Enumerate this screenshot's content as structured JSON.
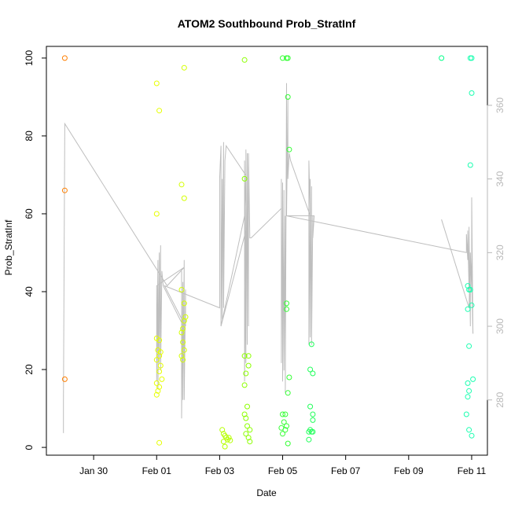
{
  "chart_data": {
    "type": "scatter",
    "title": "ATOM2 Southbound Prob_StratInf",
    "xlabel": "Date",
    "ylabel": "Prob_StratInf",
    "xlim": [
      "2017-01-28T12:00",
      "2017-02-11T12:00"
    ],
    "ylim": [
      -2,
      103
    ],
    "y_ticks": [
      0,
      20,
      40,
      60,
      80,
      100
    ],
    "x_ticks": [
      {
        "value": "2017-01-30",
        "label": "Jan 30"
      },
      {
        "value": "2017-02-01",
        "label": "Feb 01"
      },
      {
        "value": "2017-02-03",
        "label": "Feb 03"
      },
      {
        "value": "2017-02-05",
        "label": "Feb 05"
      },
      {
        "value": "2017-02-07",
        "label": "Feb 07"
      },
      {
        "value": "2017-02-09",
        "label": "Feb 09"
      },
      {
        "value": "2017-02-11",
        "label": "Feb 11"
      }
    ],
    "y2lim": [
      265,
      376
    ],
    "y2_ticks": [
      280,
      300,
      320,
      340,
      360
    ],
    "grid": false,
    "legend": "none",
    "colors": {
      "line": "#bebebe",
      "right_axis": "#b8b8b8"
    },
    "points": [
      {
        "x": "2017-01-29T02:00",
        "y": 100,
        "color": "#ff7f00"
      },
      {
        "x": "2017-01-29T02:00",
        "y": 66,
        "color": "#ff7f00"
      },
      {
        "x": "2017-01-29T02:00",
        "y": 17.5,
        "color": "#ff7f00"
      },
      {
        "x": "2017-02-01T00:00",
        "y": 93.5,
        "color": "#e6ff00"
      },
      {
        "x": "2017-02-01T02:00",
        "y": 86.5,
        "color": "#e6ff00"
      },
      {
        "x": "2017-02-01T00:00",
        "y": 60,
        "color": "#e6ff00"
      },
      {
        "x": "2017-02-01T00:00",
        "y": 28,
        "color": "#e6ff00"
      },
      {
        "x": "2017-02-01T02:00",
        "y": 27.5,
        "color": "#e6ff00"
      },
      {
        "x": "2017-02-01T01:00",
        "y": 25,
        "color": "#e6ff00"
      },
      {
        "x": "2017-02-01T03:00",
        "y": 24.5,
        "color": "#e6ff00"
      },
      {
        "x": "2017-02-01T02:00",
        "y": 23.5,
        "color": "#e6ff00"
      },
      {
        "x": "2017-02-01T00:00",
        "y": 22.5,
        "color": "#e6ff00"
      },
      {
        "x": "2017-02-01T03:00",
        "y": 21,
        "color": "#e6ff00"
      },
      {
        "x": "2017-02-01T02:00",
        "y": 19.5,
        "color": "#e6ff00"
      },
      {
        "x": "2017-02-01T04:00",
        "y": 17.5,
        "color": "#e6ff00"
      },
      {
        "x": "2017-02-01T00:00",
        "y": 16.5,
        "color": "#e6ff00"
      },
      {
        "x": "2017-02-01T02:00",
        "y": 15.5,
        "color": "#e6ff00"
      },
      {
        "x": "2017-02-01T01:00",
        "y": 14.5,
        "color": "#e6ff00"
      },
      {
        "x": "2017-02-01T00:00",
        "y": 13.5,
        "color": "#e6ff00"
      },
      {
        "x": "2017-02-01T02:00",
        "y": 1.2,
        "color": "#e6ff00"
      },
      {
        "x": "2017-02-01T21:00",
        "y": 97.5,
        "color": "#d4ff00"
      },
      {
        "x": "2017-02-01T19:00",
        "y": 67.5,
        "color": "#d4ff00"
      },
      {
        "x": "2017-02-01T21:00",
        "y": 64,
        "color": "#d4ff00"
      },
      {
        "x": "2017-02-01T19:00",
        "y": 40.5,
        "color": "#d4ff00"
      },
      {
        "x": "2017-02-01T21:00",
        "y": 37,
        "color": "#d4ff00"
      },
      {
        "x": "2017-02-01T22:00",
        "y": 33.5,
        "color": "#d4ff00"
      },
      {
        "x": "2017-02-01T21:00",
        "y": 32.5,
        "color": "#d4ff00"
      },
      {
        "x": "2017-02-01T20:00",
        "y": 30.5,
        "color": "#d4ff00"
      },
      {
        "x": "2017-02-01T19:00",
        "y": 29.5,
        "color": "#d4ff00"
      },
      {
        "x": "2017-02-01T20:00",
        "y": 27,
        "color": "#d4ff00"
      },
      {
        "x": "2017-02-01T21:00",
        "y": 25,
        "color": "#d4ff00"
      },
      {
        "x": "2017-02-01T19:00",
        "y": 23.5,
        "color": "#d4ff00"
      },
      {
        "x": "2017-02-01T20:00",
        "y": 22.5,
        "color": "#d4ff00"
      },
      {
        "x": "2017-02-03T02:00",
        "y": 4.5,
        "color": "#b5ff00"
      },
      {
        "x": "2017-02-03T03:00",
        "y": 3.5,
        "color": "#b5ff00"
      },
      {
        "x": "2017-02-03T04:00",
        "y": 3,
        "color": "#b5ff00"
      },
      {
        "x": "2017-02-03T05:00",
        "y": 2.5,
        "color": "#b5ff00"
      },
      {
        "x": "2017-02-03T06:00",
        "y": 2,
        "color": "#b5ff00"
      },
      {
        "x": "2017-02-03T03:00",
        "y": 1.5,
        "color": "#b5ff00"
      },
      {
        "x": "2017-02-03T07:00",
        "y": 2.5,
        "color": "#b5ff00"
      },
      {
        "x": "2017-02-03T08:00",
        "y": 1.8,
        "color": "#b5ff00"
      },
      {
        "x": "2017-02-03T04:00",
        "y": 0.2,
        "color": "#b5ff00"
      },
      {
        "x": "2017-02-03T19:00",
        "y": 99.5,
        "color": "#8cff00"
      },
      {
        "x": "2017-02-03T19:00",
        "y": 69,
        "color": "#8cff00"
      },
      {
        "x": "2017-02-03T19:00",
        "y": 23.5,
        "color": "#8cff00"
      },
      {
        "x": "2017-02-03T22:00",
        "y": 23.5,
        "color": "#8cff00"
      },
      {
        "x": "2017-02-03T22:00",
        "y": 21,
        "color": "#8cff00"
      },
      {
        "x": "2017-02-03T20:00",
        "y": 19,
        "color": "#8cff00"
      },
      {
        "x": "2017-02-03T19:00",
        "y": 16,
        "color": "#8cff00"
      },
      {
        "x": "2017-02-03T21:00",
        "y": 10.5,
        "color": "#8cff00"
      },
      {
        "x": "2017-02-03T19:00",
        "y": 8.5,
        "color": "#8cff00"
      },
      {
        "x": "2017-02-03T20:00",
        "y": 7.5,
        "color": "#8cff00"
      },
      {
        "x": "2017-02-03T21:00",
        "y": 5.5,
        "color": "#8cff00"
      },
      {
        "x": "2017-02-03T23:00",
        "y": 4.5,
        "color": "#8cff00"
      },
      {
        "x": "2017-02-03T20:00",
        "y": 3.5,
        "color": "#8cff00"
      },
      {
        "x": "2017-02-03T22:00",
        "y": 2.5,
        "color": "#8cff00"
      },
      {
        "x": "2017-02-03T23:00",
        "y": 1.5,
        "color": "#8cff00"
      },
      {
        "x": "2017-02-05T00:00",
        "y": 100,
        "color": "#33ff33"
      },
      {
        "x": "2017-02-05T03:00",
        "y": 100,
        "color": "#33ff33"
      },
      {
        "x": "2017-02-05T04:00",
        "y": 100,
        "color": "#33ff33"
      },
      {
        "x": "2017-02-05T04:00",
        "y": 90,
        "color": "#33ff33"
      },
      {
        "x": "2017-02-05T05:00",
        "y": 76.5,
        "color": "#33ff33"
      },
      {
        "x": "2017-02-05T03:00",
        "y": 37,
        "color": "#33ff33"
      },
      {
        "x": "2017-02-05T03:00",
        "y": 35.5,
        "color": "#33ff33"
      },
      {
        "x": "2017-02-05T05:00",
        "y": 18,
        "color": "#33ff33"
      },
      {
        "x": "2017-02-05T04:00",
        "y": 14,
        "color": "#33ff33"
      },
      {
        "x": "2017-02-05T00:00",
        "y": 8.5,
        "color": "#33ff33"
      },
      {
        "x": "2017-02-05T02:00",
        "y": 8.5,
        "color": "#33ff33"
      },
      {
        "x": "2017-02-05T01:00",
        "y": 6.5,
        "color": "#33ff33"
      },
      {
        "x": "2017-02-05T03:00",
        "y": 5.5,
        "color": "#33ff33"
      },
      {
        "x": "2017-02-04T23:00",
        "y": 5,
        "color": "#33ff33"
      },
      {
        "x": "2017-02-05T02:00",
        "y": 4.5,
        "color": "#33ff33"
      },
      {
        "x": "2017-02-05T00:00",
        "y": 3.5,
        "color": "#33ff33"
      },
      {
        "x": "2017-02-05T04:00",
        "y": 1,
        "color": "#33ff33"
      },
      {
        "x": "2017-02-05T22:00",
        "y": 26.5,
        "color": "#20ff5a"
      },
      {
        "x": "2017-02-05T21:00",
        "y": 20,
        "color": "#20ff5a"
      },
      {
        "x": "2017-02-05T23:00",
        "y": 19,
        "color": "#20ff5a"
      },
      {
        "x": "2017-02-05T21:00",
        "y": 10.5,
        "color": "#20ff5a"
      },
      {
        "x": "2017-02-05T23:00",
        "y": 8.5,
        "color": "#20ff5a"
      },
      {
        "x": "2017-02-05T23:00",
        "y": 7,
        "color": "#20ff5a"
      },
      {
        "x": "2017-02-05T21:00",
        "y": 4.5,
        "color": "#20ff5a"
      },
      {
        "x": "2017-02-05T20:00",
        "y": 4,
        "color": "#20ff5a"
      },
      {
        "x": "2017-02-05T22:00",
        "y": 4,
        "color": "#20ff5a"
      },
      {
        "x": "2017-02-05T23:00",
        "y": 4,
        "color": "#20ff5a"
      },
      {
        "x": "2017-02-05T20:00",
        "y": 2,
        "color": "#20ff5a"
      },
      {
        "x": "2017-02-10T01:00",
        "y": 100,
        "color": "#00ff88"
      },
      {
        "x": "2017-02-10T23:00",
        "y": 100,
        "color": "#1affb0"
      },
      {
        "x": "2017-02-11T00:00",
        "y": 100,
        "color": "#1affb0"
      },
      {
        "x": "2017-02-11T00:00",
        "y": 91,
        "color": "#1affb0"
      },
      {
        "x": "2017-02-10T23:00",
        "y": 72.5,
        "color": "#1affb0"
      },
      {
        "x": "2017-02-10T21:00",
        "y": 41.5,
        "color": "#1affb0"
      },
      {
        "x": "2017-02-10T22:00",
        "y": 40.5,
        "color": "#1affb0"
      },
      {
        "x": "2017-02-10T23:00",
        "y": 40.5,
        "color": "#1affb0"
      },
      {
        "x": "2017-02-11T00:00",
        "y": 36.5,
        "color": "#1affb0"
      },
      {
        "x": "2017-02-10T21:00",
        "y": 35.5,
        "color": "#1affb0"
      },
      {
        "x": "2017-02-10T22:00",
        "y": 26,
        "color": "#1affb0"
      },
      {
        "x": "2017-02-11T01:00",
        "y": 17.5,
        "color": "#1affb0"
      },
      {
        "x": "2017-02-10T21:00",
        "y": 16.5,
        "color": "#1affb0"
      },
      {
        "x": "2017-02-10T22:00",
        "y": 14.5,
        "color": "#1affb0"
      },
      {
        "x": "2017-02-10T21:00",
        "y": 13,
        "color": "#1affb0"
      },
      {
        "x": "2017-02-10T20:00",
        "y": 8.5,
        "color": "#1affb0"
      },
      {
        "x": "2017-02-10T22:00",
        "y": 4.5,
        "color": "#1affb0"
      },
      {
        "x": "2017-02-11T00:00",
        "y": 3,
        "color": "#1affb0"
      }
    ],
    "altitude_line": [
      [
        "2017-01-29T01:00",
        271
      ],
      [
        "2017-01-29T01:00",
        280
      ],
      [
        "2017-01-29T02:00",
        355
      ],
      [
        "2017-02-01T08:00",
        311
      ],
      [
        "2017-02-01T21:00",
        316
      ],
      [
        "2017-02-01T00:00",
        311
      ],
      [
        "2017-02-01T00:00",
        285
      ],
      [
        "2017-02-01T01:00",
        318
      ],
      [
        "2017-02-01T01:00",
        283
      ],
      [
        "2017-02-01T02:00",
        320
      ],
      [
        "2017-02-01T02:00",
        290
      ],
      [
        "2017-02-01T03:00",
        322
      ],
      [
        "2017-02-01T03:00",
        288
      ],
      [
        "2017-02-01T04:00",
        315
      ],
      [
        "2017-02-01T05:00",
        311
      ],
      [
        "2017-02-01T19:00",
        301
      ],
      [
        "2017-02-01T19:00",
        315
      ],
      [
        "2017-02-01T19:00",
        275
      ],
      [
        "2017-02-01T20:00",
        312
      ],
      [
        "2017-02-01T20:00",
        280
      ],
      [
        "2017-02-01T21:00",
        318
      ],
      [
        "2017-02-01T21:00",
        280
      ],
      [
        "2017-02-01T22:00",
        310
      ],
      [
        "2017-02-01T22:00",
        300
      ],
      [
        "2017-02-01T06:00",
        311
      ],
      [
        "2017-02-03T00:00",
        305
      ],
      [
        "2017-02-03T00:00",
        340
      ],
      [
        "2017-02-03T01:00",
        349
      ],
      [
        "2017-02-03T01:00",
        300
      ],
      [
        "2017-02-03T02:00",
        340
      ],
      [
        "2017-02-03T02:00",
        302
      ],
      [
        "2017-02-03T03:00",
        350
      ],
      [
        "2017-02-03T03:00",
        305
      ],
      [
        "2017-02-03T04:00",
        345
      ],
      [
        "2017-02-03T05:00",
        349
      ],
      [
        "2017-02-03T20:00",
        341
      ],
      [
        "2017-02-03T19:00",
        330
      ],
      [
        "2017-02-03T01:00",
        300
      ],
      [
        "2017-02-03T20:00",
        326
      ],
      [
        "2017-02-03T19:00",
        285
      ],
      [
        "2017-02-03T19:00",
        345
      ],
      [
        "2017-02-03T20:00",
        290
      ],
      [
        "2017-02-03T20:00",
        348
      ],
      [
        "2017-02-03T21:00",
        295
      ],
      [
        "2017-02-03T21:00",
        347
      ],
      [
        "2017-02-03T22:00",
        300
      ],
      [
        "2017-02-03T22:00",
        347
      ],
      [
        "2017-02-03T23:00",
        324
      ],
      [
        "2017-02-04T00:00",
        324
      ],
      [
        "2017-02-04T23:00",
        332
      ],
      [
        "2017-02-04T23:00",
        340
      ],
      [
        "2017-02-04T23:00",
        290
      ],
      [
        "2017-02-05T00:00",
        339
      ],
      [
        "2017-02-05T00:00",
        285
      ],
      [
        "2017-02-05T01:00",
        337
      ],
      [
        "2017-02-05T01:00",
        288
      ],
      [
        "2017-02-05T02:00",
        330
      ],
      [
        "2017-02-05T02:00",
        282
      ],
      [
        "2017-02-05T03:00",
        366
      ],
      [
        "2017-02-05T03:00",
        330
      ],
      [
        "2017-02-05T04:00",
        362
      ],
      [
        "2017-02-05T04:00",
        340
      ],
      [
        "2017-02-05T05:00",
        347
      ],
      [
        "2017-02-05T06:00",
        345
      ],
      [
        "2017-02-05T21:00",
        330
      ],
      [
        "2017-02-05T20:00",
        345
      ],
      [
        "2017-02-05T20:00",
        295
      ],
      [
        "2017-02-05T21:00",
        340
      ],
      [
        "2017-02-05T21:00",
        297
      ],
      [
        "2017-02-05T22:00",
        338
      ],
      [
        "2017-02-05T22:00",
        295
      ],
      [
        "2017-02-05T23:00",
        330
      ],
      [
        "2017-02-05T23:00",
        324
      ],
      [
        "2017-02-06T00:00",
        330
      ],
      [
        "2017-02-05T03:00",
        330
      ],
      [
        "2017-02-10T20:00",
        320
      ],
      [
        "2017-02-10T20:00",
        325
      ],
      [
        "2017-02-10T21:00",
        318
      ],
      [
        "2017-02-10T21:00",
        326
      ],
      [
        "2017-02-10T22:00",
        310
      ],
      [
        "2017-02-10T22:00",
        327
      ],
      [
        "2017-02-10T23:00",
        300
      ],
      [
        "2017-02-10T23:00",
        320
      ],
      [
        "2017-02-11T00:00",
        310
      ],
      [
        "2017-02-11T00:00",
        335
      ],
      [
        "2017-02-11T01:00",
        298
      ]
    ],
    "altitude_line_2": [
      [
        "2017-02-10T01:00",
        329
      ],
      [
        "2017-02-10T22:00",
        305
      ],
      [
        "2017-02-10T23:00",
        318
      ],
      [
        "2017-02-11T00:00",
        312
      ],
      [
        "2017-02-11T01:00",
        298
      ]
    ]
  }
}
